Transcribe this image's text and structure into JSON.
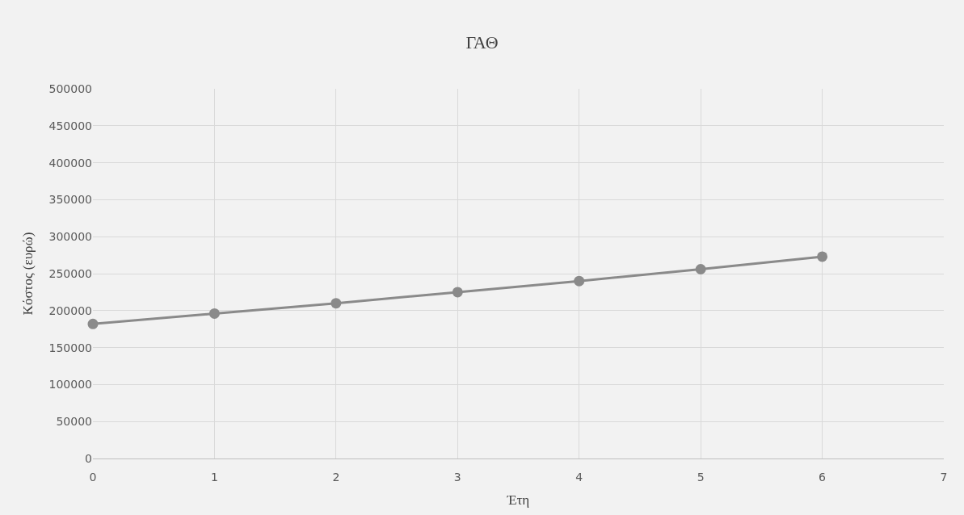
{
  "chart_data": {
    "type": "line",
    "title": "ΓΑΘ",
    "xlabel": "Έτη",
    "ylabel": "Κόστος (ευρώ)",
    "x": [
      0,
      1,
      2,
      3,
      4,
      5,
      6
    ],
    "series": [
      {
        "color": "#8a8a8a",
        "values": [
          182000,
          196000,
          210000,
          225000,
          240000,
          256000,
          273000
        ]
      }
    ],
    "xlim": [
      0,
      7
    ],
    "xticks": [
      0,
      1,
      2,
      3,
      4,
      5,
      6,
      7
    ],
    "ylim": [
      0,
      500000
    ],
    "yticks": [
      0,
      50000,
      100000,
      150000,
      200000,
      250000,
      300000,
      350000,
      400000,
      450000,
      500000
    ],
    "grid": true,
    "marker": "circle",
    "line_style": "solid"
  }
}
